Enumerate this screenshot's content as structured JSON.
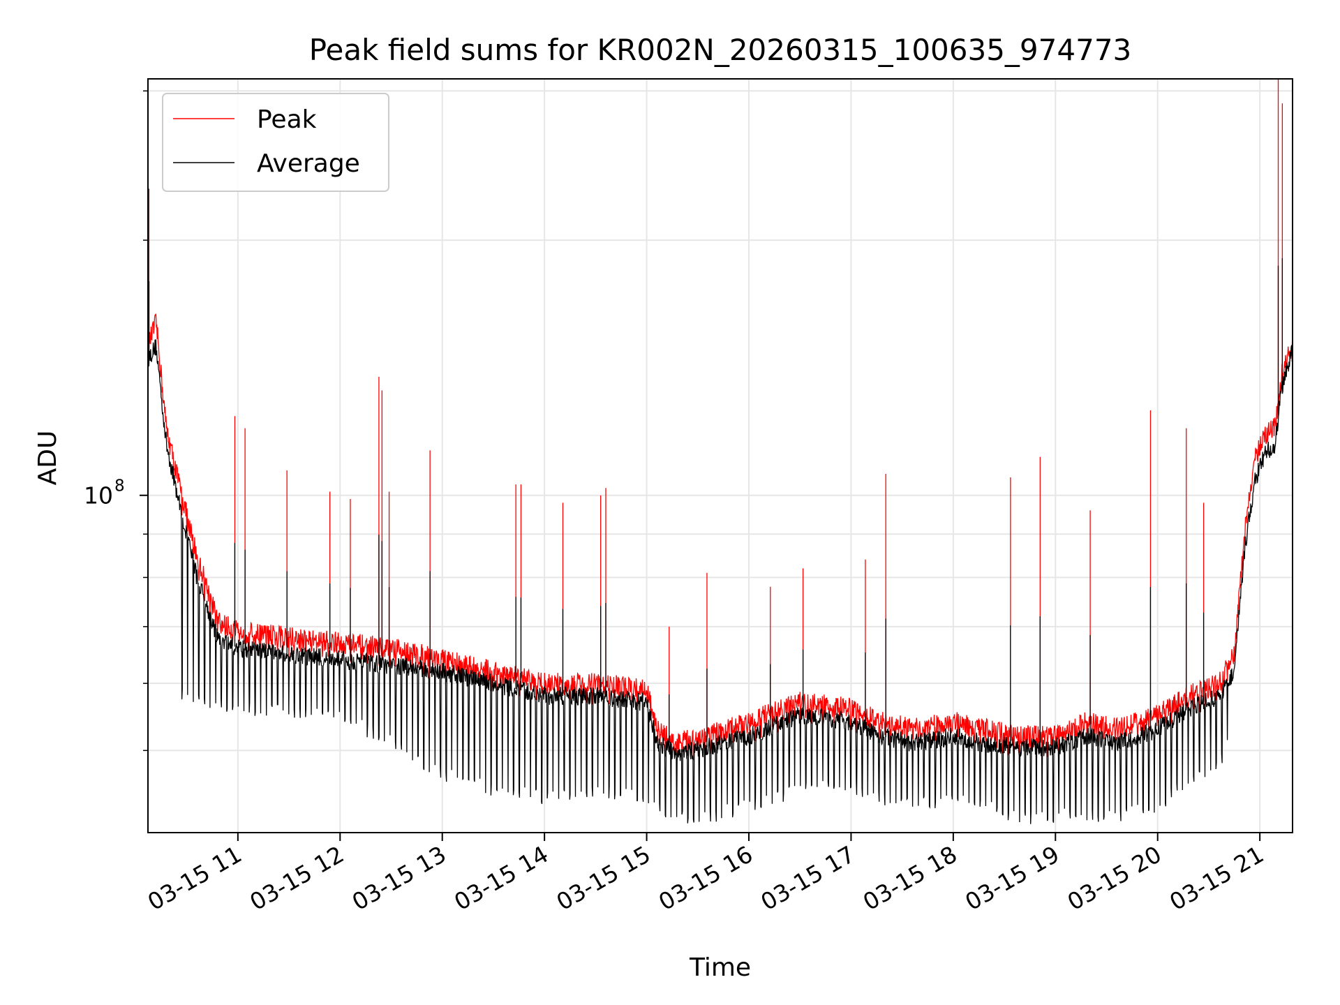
{
  "chart_data": {
    "type": "line",
    "title": "Peak field sums for KR002N_20260315_100635_974773",
    "xlabel": "Time",
    "ylabel": "ADU",
    "yscale": "log",
    "grid": true,
    "legend_position": "top-left",
    "x_range_hours": [
      10.12,
      21.32
    ],
    "y_range": [
      40000000.0,
      310000000.0
    ],
    "x_ticks": [
      {
        "hour": 11,
        "label": "03-15 11"
      },
      {
        "hour": 12,
        "label": "03-15 12"
      },
      {
        "hour": 13,
        "label": "03-15 13"
      },
      {
        "hour": 14,
        "label": "03-15 14"
      },
      {
        "hour": 15,
        "label": "03-15 15"
      },
      {
        "hour": 16,
        "label": "03-15 16"
      },
      {
        "hour": 17,
        "label": "03-15 17"
      },
      {
        "hour": 18,
        "label": "03-15 18"
      },
      {
        "hour": 19,
        "label": "03-15 19"
      },
      {
        "hour": 20,
        "label": "03-15 20"
      },
      {
        "hour": 21,
        "label": "03-15 21"
      }
    ],
    "y_major_ticks": [
      {
        "value": 100000000.0,
        "label_base": "10",
        "label_exp": "8"
      }
    ],
    "y_minor_ticks": [
      50000000.0,
      60000000.0,
      70000000.0,
      80000000.0,
      90000000.0,
      200000000.0,
      300000000.0
    ],
    "series": [
      {
        "name": "Peak",
        "color": "#ff0000",
        "baseline": {
          "hours": [
            10.12,
            10.2,
            10.3,
            10.45,
            10.6,
            10.8,
            11.0,
            11.5,
            12.0,
            12.5,
            13.0,
            13.5,
            14.0,
            14.5,
            15.0,
            15.1,
            15.3,
            15.6,
            16.0,
            16.5,
            17.0,
            17.3,
            17.6,
            18.0,
            18.3,
            18.6,
            19.0,
            19.3,
            19.6,
            20.0,
            20.3,
            20.6,
            20.75,
            20.85,
            20.95,
            21.05,
            21.15,
            21.22,
            21.32
          ],
          "values": [
            150000000.0,
            160000000.0,
            120000000.0,
            100000000.0,
            85000000.0,
            71000000.0,
            69000000.0,
            68000000.0,
            67000000.0,
            66000000.0,
            64000000.0,
            62000000.0,
            60000000.0,
            60000000.0,
            59000000.0,
            53000000.0,
            51000000.0,
            52000000.0,
            54000000.0,
            57000000.0,
            56000000.0,
            54000000.0,
            53000000.0,
            54000000.0,
            53000000.0,
            52000000.0,
            52000000.0,
            54000000.0,
            53000000.0,
            55000000.0,
            58000000.0,
            60000000.0,
            65000000.0,
            90000000.0,
            110000000.0,
            118000000.0,
            120000000.0,
            140000000.0,
            150000000.0
          ]
        },
        "spikes": [
          {
            "hour": 10.13,
            "value": 230000000.0
          },
          {
            "hour": 10.97,
            "value": 124000000.0
          },
          {
            "hour": 11.07,
            "value": 120000000.0
          },
          {
            "hour": 11.48,
            "value": 107000000.0
          },
          {
            "hour": 11.9,
            "value": 101000000.0
          },
          {
            "hour": 12.1,
            "value": 99000000.0
          },
          {
            "hour": 12.38,
            "value": 138000000.0
          },
          {
            "hour": 12.41,
            "value": 133000000.0
          },
          {
            "hour": 12.48,
            "value": 101000000.0
          },
          {
            "hour": 12.88,
            "value": 113000000.0
          },
          {
            "hour": 13.72,
            "value": 103000000.0
          },
          {
            "hour": 13.77,
            "value": 103000000.0
          },
          {
            "hour": 14.18,
            "value": 98000000.0
          },
          {
            "hour": 14.55,
            "value": 100000000.0
          },
          {
            "hour": 14.6,
            "value": 102000000.0
          },
          {
            "hour": 15.22,
            "value": 70000000.0
          },
          {
            "hour": 15.59,
            "value": 81000000.0
          },
          {
            "hour": 16.21,
            "value": 78000000.0
          },
          {
            "hour": 16.53,
            "value": 82000000.0
          },
          {
            "hour": 17.14,
            "value": 84000000.0
          },
          {
            "hour": 17.34,
            "value": 106000000.0
          },
          {
            "hour": 18.56,
            "value": 105000000.0
          },
          {
            "hour": 18.85,
            "value": 111000000.0
          },
          {
            "hour": 19.34,
            "value": 96000000.0
          },
          {
            "hour": 19.93,
            "value": 126000000.0
          },
          {
            "hour": 20.28,
            "value": 120000000.0
          },
          {
            "hour": 20.45,
            "value": 98000000.0
          },
          {
            "hour": 21.18,
            "value": 310000000.0
          },
          {
            "hour": 21.22,
            "value": 290000000.0
          }
        ]
      },
      {
        "name": "Average",
        "color": "#000000",
        "baseline": {
          "hours": [
            10.12,
            10.2,
            10.3,
            10.45,
            10.6,
            10.8,
            11.0,
            11.5,
            12.0,
            12.5,
            13.0,
            13.5,
            14.0,
            14.5,
            15.0,
            15.1,
            15.3,
            15.6,
            16.0,
            16.5,
            17.0,
            17.3,
            17.6,
            18.0,
            18.3,
            18.6,
            19.0,
            19.3,
            19.6,
            20.0,
            20.3,
            20.6,
            20.75,
            20.85,
            20.95,
            21.05,
            21.15,
            21.22,
            21.32
          ],
          "values": [
            145000000.0,
            150000000.0,
            115000000.0,
            95000000.0,
            80000000.0,
            68000000.0,
            66000000.0,
            65000000.0,
            64000000.0,
            63000000.0,
            62000000.0,
            60000000.0,
            58000000.0,
            58000000.0,
            57000000.0,
            51000000.0,
            49500000.0,
            50500000.0,
            52000000.0,
            55000000.0,
            54000000.0,
            52000000.0,
            51000000.0,
            52000000.0,
            51000000.0,
            50500000.0,
            50500000.0,
            52000000.0,
            51000000.0,
            53000000.0,
            56000000.0,
            58000000.0,
            62000000.0,
            86000000.0,
            104000000.0,
            112000000.0,
            115000000.0,
            135000000.0,
            148000000.0
          ]
        },
        "dip_floor": {
          "hours": [
            10.5,
            11.0,
            12.0,
            12.5,
            13.0,
            13.5,
            14.0,
            14.5,
            15.0,
            15.2,
            15.5,
            16.0,
            16.5,
            16.9,
            17.3,
            17.6,
            18.0,
            18.3,
            18.7,
            19.2,
            19.6,
            20.0,
            20.3,
            20.6,
            20.72
          ],
          "values": [
            58000000.0,
            56000000.0,
            55000000.0,
            51000000.0,
            47000000.0,
            45000000.0,
            44000000.0,
            45000000.0,
            44000000.0,
            42000000.0,
            41500000.0,
            43000000.0,
            45000000.0,
            46000000.0,
            44000000.0,
            43000000.0,
            44000000.0,
            43000000.0,
            41500000.0,
            42000000.0,
            42000000.0,
            43000000.0,
            46000000.0,
            48000000.0,
            52000000.0
          ]
        }
      }
    ]
  }
}
